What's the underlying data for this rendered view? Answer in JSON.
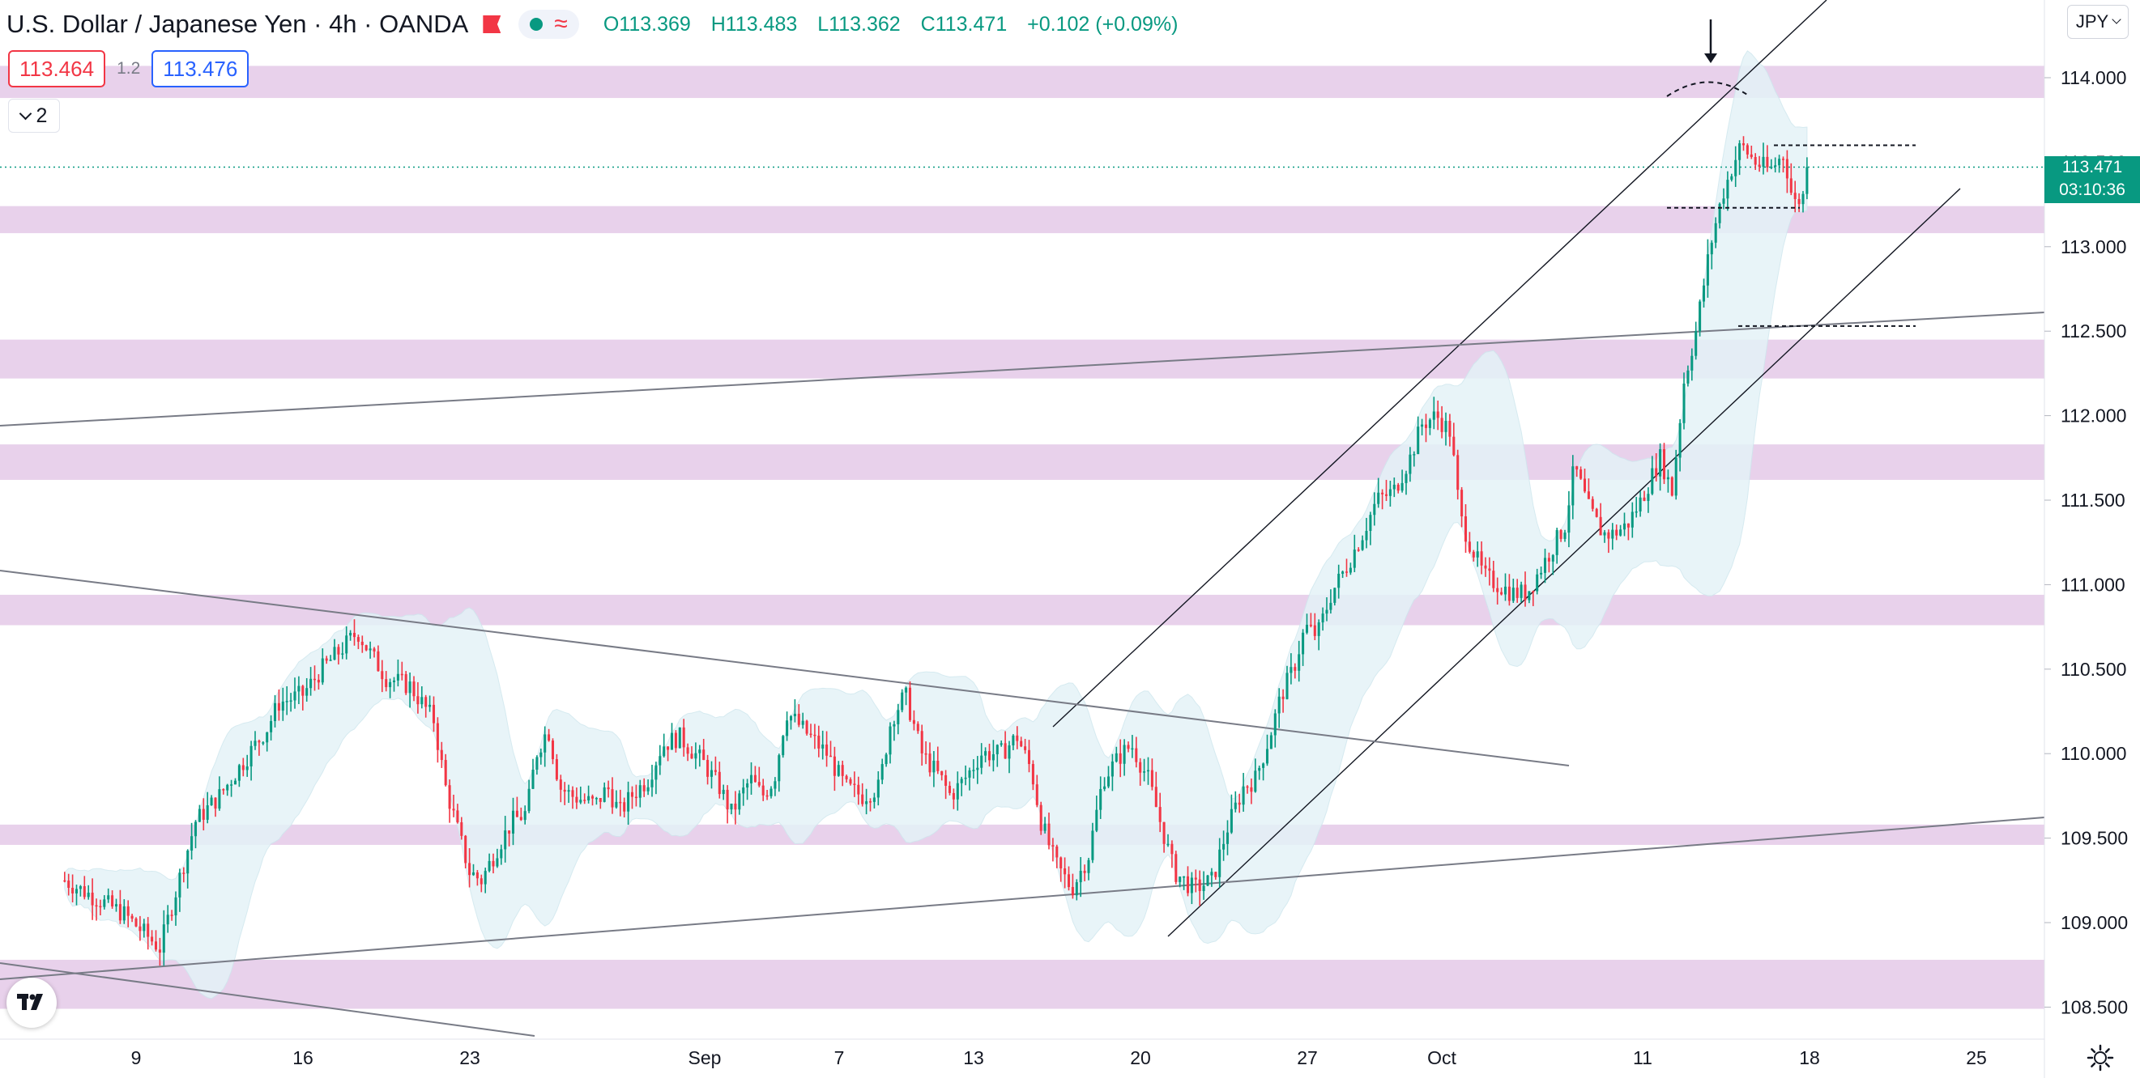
{
  "legend": {
    "title": "U.S. Dollar / Japanese Yen · 4h · OANDA",
    "o_label": "O",
    "o_value": "113.369",
    "h_label": "H",
    "h_value": "113.483",
    "l_label": "L",
    "l_value": "113.362",
    "c_label": "C",
    "c_value": "113.471",
    "change": "+0.102 (+0.09%)"
  },
  "quotes": {
    "sell": "113.464",
    "spread": "1.2",
    "buy": "113.476"
  },
  "collapse_label": "2",
  "currency": "JPY",
  "last_price": {
    "price": "113.471",
    "countdown": "03:10:36"
  },
  "colors": {
    "up": "#089981",
    "down": "#f23645",
    "zone": "#e6cce9",
    "band": "#e4f3f7",
    "trend": "#131722"
  },
  "icons": {
    "logo": "tradingview-logo-icon",
    "settings": "gear-icon",
    "flag": "red-flag-icon"
  },
  "chart_data": {
    "type": "candlestick",
    "title": "U.S. Dollar / Japanese Yen · 4h · OANDA",
    "ylim": [
      108.35,
      114.25
    ],
    "y_ticks": [
      "114.000",
      "113.500",
      "113.000",
      "112.500",
      "112.000",
      "111.500",
      "111.000",
      "110.500",
      "110.000",
      "109.500",
      "109.000",
      "108.500"
    ],
    "x_ticks": [
      "9",
      "16",
      "23",
      "Sep",
      "7",
      "13",
      "20",
      "27",
      "Oct",
      "11",
      "18",
      "25"
    ],
    "close_path": [
      [
        0,
        109.25
      ],
      [
        2.5,
        109.05
      ],
      [
        4,
        108.85
      ],
      [
        5.5,
        109.6
      ],
      [
        6.5,
        109.75
      ],
      [
        7.5,
        109.95
      ],
      [
        8.5,
        110.15
      ],
      [
        9,
        110.3
      ],
      [
        10,
        110.35
      ],
      [
        10.8,
        110.5
      ],
      [
        11.5,
        110.6
      ],
      [
        12.3,
        110.72
      ],
      [
        12.8,
        110.6
      ],
      [
        13.5,
        110.45
      ],
      [
        14.5,
        110.4
      ],
      [
        15.5,
        110.2
      ],
      [
        16,
        109.8
      ],
      [
        16.5,
        109.55
      ],
      [
        17,
        109.3
      ],
      [
        17.5,
        109.25
      ],
      [
        18.2,
        109.45
      ],
      [
        18.8,
        109.6
      ],
      [
        19.4,
        109.65
      ],
      [
        19.8,
        110.0
      ],
      [
        20.3,
        110.15
      ],
      [
        20.8,
        109.8
      ],
      [
        21.3,
        109.75
      ],
      [
        22.3,
        109.7
      ],
      [
        22.8,
        109.8
      ],
      [
        23.3,
        109.65
      ],
      [
        23.8,
        109.75
      ],
      [
        24.5,
        109.85
      ],
      [
        25.1,
        110.05
      ],
      [
        25.8,
        110.1
      ],
      [
        26.8,
        109.95
      ],
      [
        27.5,
        109.8
      ],
      [
        28,
        109.65
      ],
      [
        28.8,
        109.85
      ],
      [
        29.3,
        109.75
      ],
      [
        29.8,
        109.85
      ],
      [
        30.3,
        110.25
      ],
      [
        31.3,
        110.1
      ],
      [
        32,
        110.0
      ],
      [
        32.8,
        109.8
      ],
      [
        33.5,
        109.75
      ],
      [
        34.2,
        109.8
      ],
      [
        34.7,
        110.2
      ],
      [
        35.3,
        110.35
      ],
      [
        36,
        110.0
      ],
      [
        36.8,
        109.85
      ],
      [
        37.2,
        109.75
      ],
      [
        37.8,
        109.85
      ],
      [
        38.5,
        110.0
      ],
      [
        39.3,
        110.0
      ],
      [
        40,
        110.1
      ],
      [
        40.6,
        109.9
      ],
      [
        41,
        109.6
      ],
      [
        41.6,
        109.35
      ],
      [
        42.3,
        109.2
      ],
      [
        43,
        109.4
      ],
      [
        43.6,
        109.85
      ],
      [
        44.4,
        110.0
      ],
      [
        44.8,
        110.05
      ],
      [
        45.5,
        109.85
      ],
      [
        46.1,
        109.55
      ],
      [
        46.6,
        109.3
      ],
      [
        47.4,
        109.2
      ],
      [
        48.2,
        109.25
      ],
      [
        48.8,
        109.55
      ],
      [
        49.5,
        109.8
      ],
      [
        50,
        109.85
      ],
      [
        50.6,
        110.1
      ],
      [
        51.1,
        110.35
      ],
      [
        51.6,
        110.5
      ],
      [
        52.1,
        110.75
      ],
      [
        52.6,
        110.7
      ],
      [
        53.2,
        110.95
      ],
      [
        53.8,
        111.1
      ],
      [
        54.5,
        111.3
      ],
      [
        55.1,
        111.5
      ],
      [
        55.8,
        111.55
      ],
      [
        56.5,
        111.75
      ],
      [
        57,
        111.95
      ],
      [
        57.6,
        112.0
      ],
      [
        58.2,
        111.9
      ],
      [
        58.6,
        111.4
      ],
      [
        59,
        111.25
      ],
      [
        59.6,
        111.05
      ],
      [
        60.2,
        111.0
      ],
      [
        60.8,
        110.95
      ],
      [
        61.4,
        110.95
      ],
      [
        62,
        111.1
      ],
      [
        62.6,
        111.25
      ],
      [
        63,
        111.35
      ],
      [
        63.4,
        111.7
      ],
      [
        64,
        111.45
      ],
      [
        64.6,
        111.3
      ],
      [
        65,
        111.3
      ],
      [
        65.6,
        111.35
      ],
      [
        66.2,
        111.5
      ],
      [
        67,
        111.75
      ],
      [
        67.5,
        111.55
      ],
      [
        68,
        112.2
      ],
      [
        68.5,
        112.5
      ],
      [
        69.1,
        113.0
      ],
      [
        69.6,
        113.3
      ],
      [
        70.1,
        113.5
      ],
      [
        70.4,
        113.6
      ],
      [
        71,
        113.5
      ],
      [
        71.6,
        113.45
      ],
      [
        72.2,
        113.55
      ],
      [
        72.6,
        113.25
      ],
      [
        73,
        113.3
      ],
      [
        73.3,
        113.47
      ]
    ],
    "bollinger": {
      "upper_peak": 113.95,
      "lower_trough": 109.0
    },
    "annotations": {
      "bands": [
        [
          113.88,
          114.07
        ],
        [
          113.08,
          113.24
        ],
        [
          112.22,
          112.45
        ],
        [
          111.62,
          111.83
        ],
        [
          110.76,
          110.94
        ],
        [
          109.46,
          109.58
        ],
        [
          108.49,
          108.78
        ]
      ],
      "current_price_line": 113.471,
      "dashed_levels": [
        113.6,
        113.23,
        112.53
      ],
      "trendlines": [
        "rising channel",
        "falling line from July",
        "rising long-term support"
      ]
    }
  }
}
